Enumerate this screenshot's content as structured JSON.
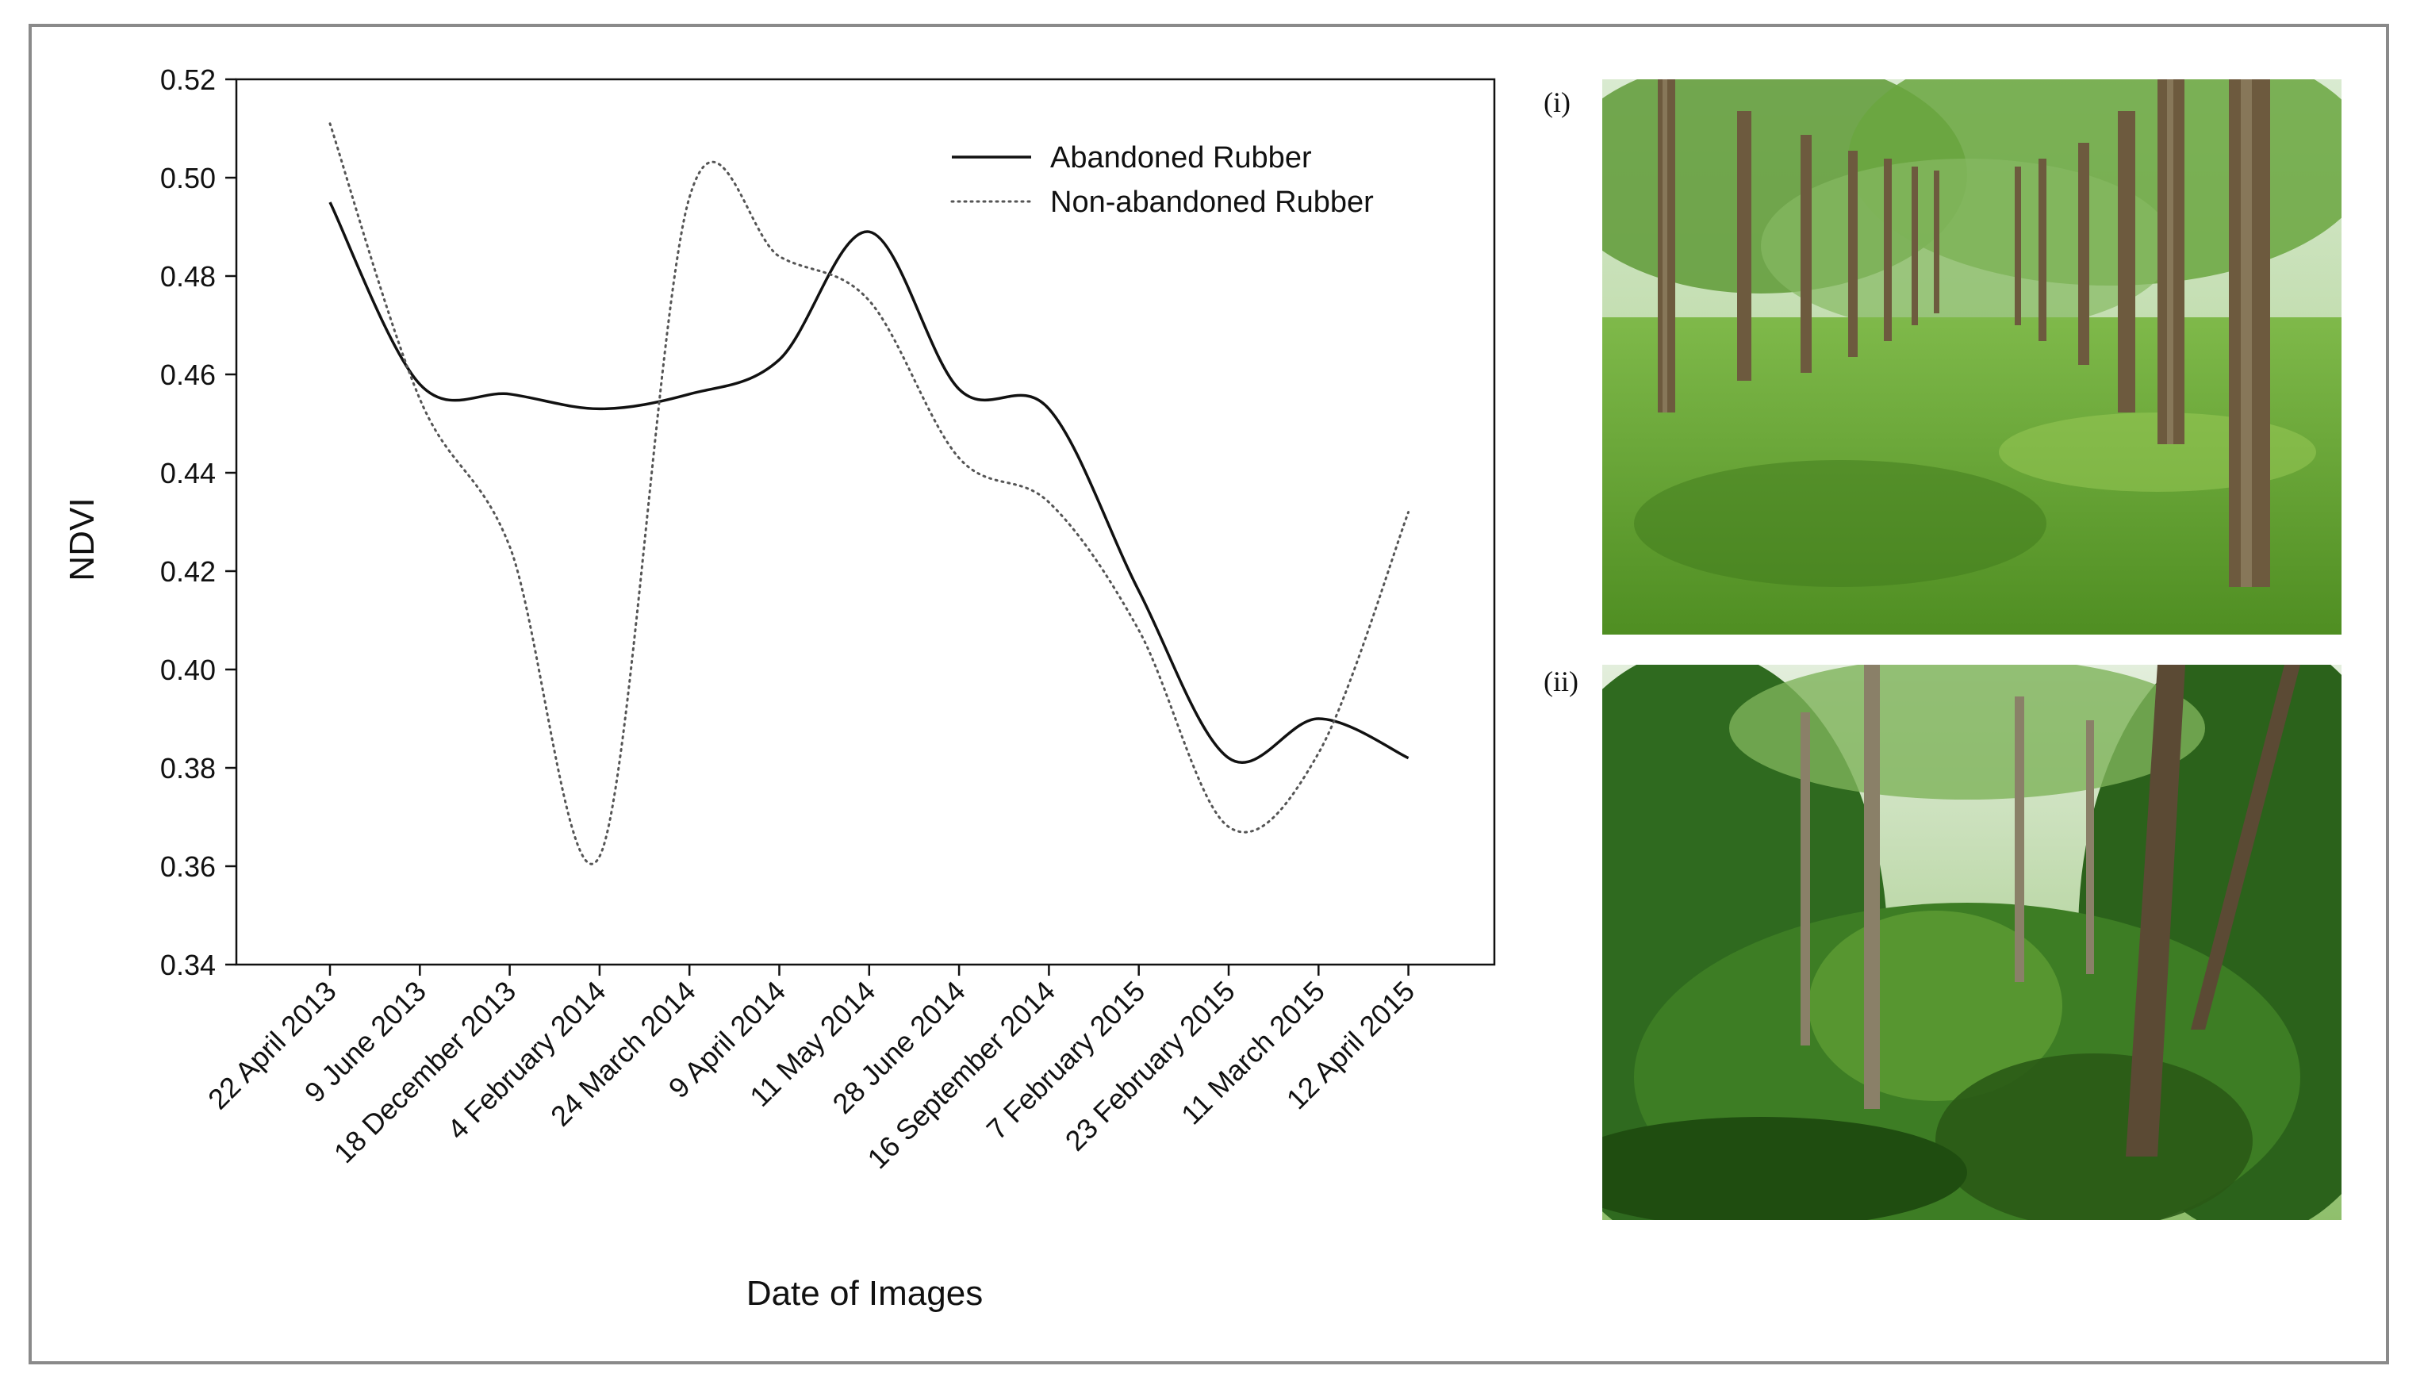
{
  "chart_data": {
    "type": "line",
    "title": "",
    "xlabel": "Date of Images",
    "ylabel": "NDVI",
    "ylim": [
      0.34,
      0.52
    ],
    "yticks": [
      "0.34",
      "0.36",
      "0.38",
      "0.40",
      "0.42",
      "0.44",
      "0.46",
      "0.48",
      "0.50",
      "0.52"
    ],
    "grid": false,
    "legend_position": "top-right",
    "categories": [
      "22 April 2013",
      "9 June 2013",
      "18 December 2013",
      "4 February 2014",
      "24 March 2014",
      "9 April 2014",
      "11 May 2014",
      "28 June 2014",
      "16 September 2014",
      "7 February 2015",
      "23 February 2015",
      "11 March 2015",
      "12 April 2015"
    ],
    "series": [
      {
        "name": "Abandoned Rubber",
        "style": "solid",
        "color": "#111111",
        "values": [
          0.495,
          0.458,
          0.456,
          0.453,
          0.456,
          0.463,
          0.489,
          0.457,
          0.453,
          0.416,
          0.382,
          0.39,
          0.382
        ]
      },
      {
        "name": "Non-abandoned Rubber",
        "style": "dotted",
        "color": "#555555",
        "values": [
          0.511,
          0.455,
          0.425,
          0.362,
          0.496,
          0.484,
          0.475,
          0.443,
          0.434,
          0.408,
          0.368,
          0.383,
          0.432
        ]
      }
    ]
  },
  "photos": {
    "label_i": "(i)",
    "label_ii": "(ii)"
  }
}
